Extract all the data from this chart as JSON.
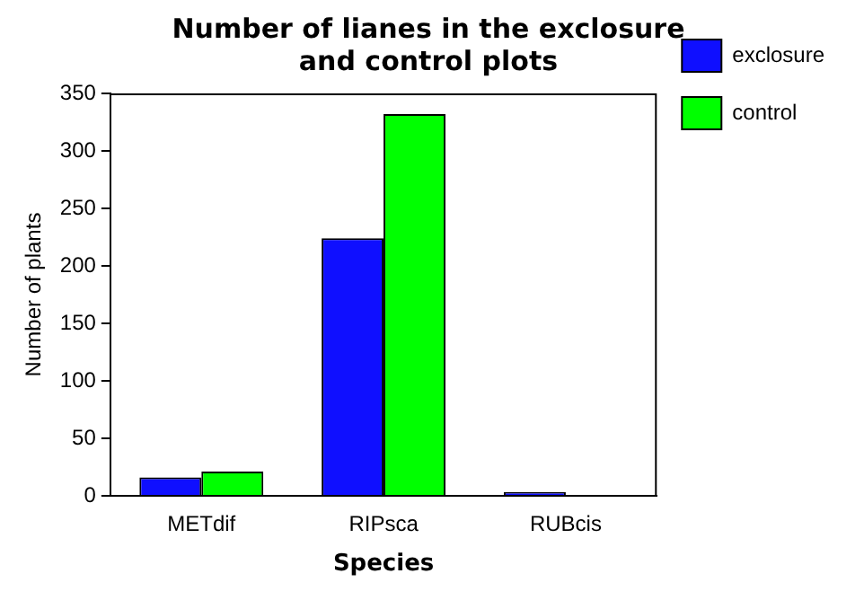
{
  "chart_data": {
    "type": "bar",
    "title": "Number of lianes in the exclosure and control plots",
    "xlabel": "Species",
    "ylabel": "Number of plants",
    "categories": [
      "METdif",
      "RIPsca",
      "RUBcis"
    ],
    "series": [
      {
        "name": "exclosure",
        "color": "#0f0fff",
        "values": [
          16,
          224,
          1
        ]
      },
      {
        "name": "control",
        "color": "#00ff00",
        "values": [
          21,
          332,
          0
        ]
      }
    ],
    "ylim": [
      0,
      350
    ],
    "yticks": [
      0,
      50,
      100,
      150,
      200,
      250,
      300,
      350
    ],
    "grid": false,
    "legend": "top right"
  }
}
